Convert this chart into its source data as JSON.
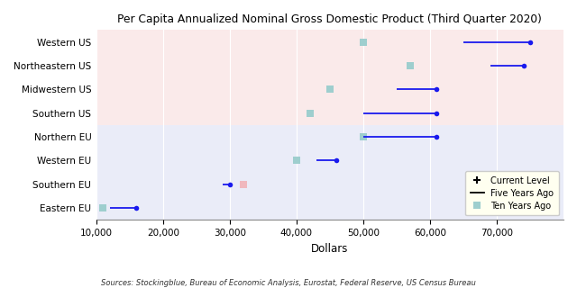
{
  "title": "Per Capita Annualized Nominal Gross Domestic Product (Third Quarter 2020)",
  "xlabel": "Dollars",
  "source": "Sources: Stockingblue, Bureau of Economic Analysis, Eurostat, Federal Reserve, US Census Bureau",
  "regions": [
    "Western US",
    "Northeastern US",
    "Midwestern US",
    "Southern US",
    "Northern EU",
    "Western EU",
    "Southern EU",
    "Eastern EU"
  ],
  "current": [
    75000,
    74000,
    61000,
    61000,
    61000,
    46000,
    30000,
    16000
  ],
  "five_years": [
    65000,
    69000,
    55000,
    50000,
    50000,
    43000,
    29000,
    12000
  ],
  "ten_years": [
    50000,
    57000,
    45000,
    42000,
    50000,
    40000,
    32000,
    11000
  ],
  "line_colors": [
    "#1a1aee",
    "#1a1aee",
    "#1a1aee",
    "#1a1aee",
    "#1a1aee",
    "#1a1aee",
    "#1a1aee",
    "#1a1aee"
  ],
  "bg_us": "#faeaea",
  "bg_eu": "#eaecf8",
  "dot_color": "#1a1aee",
  "ten_year_color_default": "#9ecece",
  "ten_year_color_southern_eu": "#f0b8be",
  "xlim": [
    10000,
    80000
  ],
  "xticks": [
    10000,
    20000,
    30000,
    40000,
    50000,
    60000,
    70000
  ],
  "us_regions": [
    "Western US",
    "Northeastern US",
    "Midwestern US",
    "Southern US"
  ],
  "legend_facecolor": "#fffff0",
  "legend_edgecolor": "#cccccc"
}
